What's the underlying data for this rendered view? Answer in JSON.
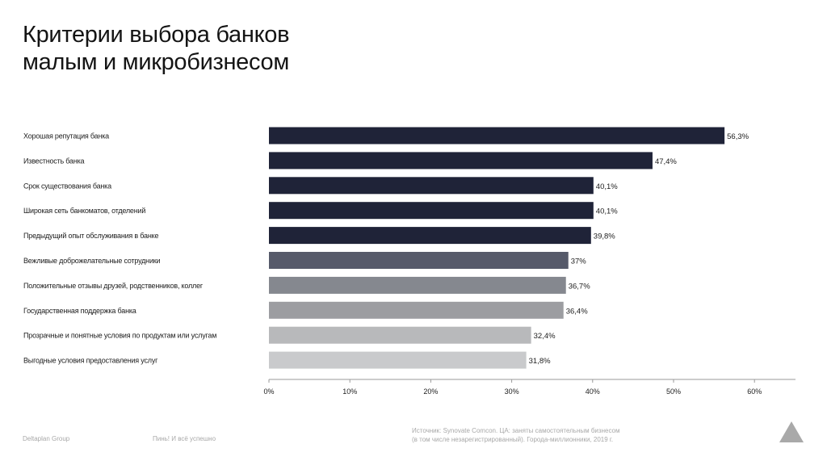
{
  "title": {
    "line1": "Критерии выбора банков",
    "line2": "малым и микробизнесом"
  },
  "chart_data": {
    "type": "bar",
    "orientation": "horizontal",
    "categories": [
      "Хорошая репутация банка",
      "Известность банка",
      "Срок существования банка",
      "Широкая сеть банкоматов, отделений",
      "Предыдущий опыт обслуживания в банке",
      "Вежливые доброжелательные сотрудники",
      "Положительные отзывы друзей, родственников, коллег",
      "Государственная поддержка банка",
      "Прозрачные и понятные условия по продуктам или услугам",
      "Выгодные условия предоставления услуг"
    ],
    "values": [
      56.3,
      47.4,
      40.1,
      40.1,
      39.8,
      37,
      36.7,
      36.4,
      32.4,
      31.8
    ],
    "value_labels": [
      "56,3%",
      "47,4%",
      "40,1%",
      "40,1%",
      "39,8%",
      "37%",
      "36,7%",
      "36,4%",
      "32,4%",
      "31,8%"
    ],
    "bar_colors": [
      "#1f2338",
      "#1f2338",
      "#1f2338",
      "#1f2338",
      "#1f2338",
      "#565a6a",
      "#85888f",
      "#9c9da1",
      "#b8b9bb",
      "#c9cacc"
    ],
    "x_ticks": [
      0,
      10,
      20,
      30,
      40,
      50,
      60
    ],
    "x_tick_labels": [
      "0%",
      "10%",
      "20%",
      "30%",
      "40%",
      "50%",
      "60%"
    ],
    "xlim": [
      0,
      65
    ],
    "grid": false,
    "legend": "none"
  },
  "footer": {
    "org": "Deltaplan Group",
    "tagline": "Пинь! И всё успешно",
    "source_line1": "Источник: Synovate Comcon. ЦА: заняты самостоятельным бизнесом",
    "source_line2": "(в том числе незарегистрированный). Города-миллионники, 2019 г."
  },
  "logo": {
    "icon": "triangle-logo-icon",
    "color": "#a9a9a9"
  }
}
